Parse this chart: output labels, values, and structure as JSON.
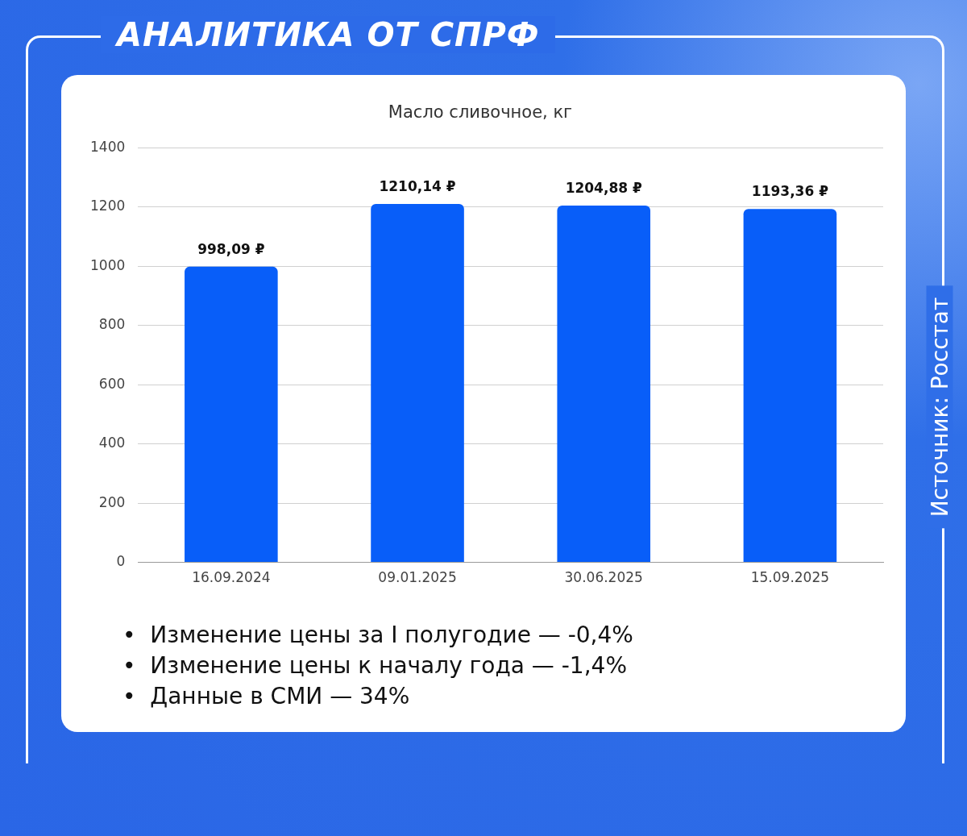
{
  "chart_data": {
    "type": "bar",
    "title": "АНАЛИТИКА ОТ СПРФ",
    "subtitle": "Масло сливочное, кг",
    "categories": [
      "16.09.2024",
      "09.01.2025",
      "30.06.2025",
      "15.09.2025"
    ],
    "values": [
      998.09,
      1210.14,
      1204.88,
      1193.36
    ],
    "value_labels": [
      "998,09 ₽",
      "1210,14 ₽",
      "1204,88 ₽",
      "1193,36 ₽"
    ],
    "color": "#085ef9",
    "ylim": [
      0,
      1400
    ],
    "yticks": [
      0,
      200,
      400,
      600,
      800,
      1000,
      1200,
      1400
    ],
    "grid": "y",
    "legend": false,
    "annotations": [
      "•  Изменение цены за I полугодие — -0,4%",
      "•  Изменение цены к началу года — -1,4%",
      "•  Данные в СМИ — 34%",
      "Источник: Росстат"
    ]
  }
}
